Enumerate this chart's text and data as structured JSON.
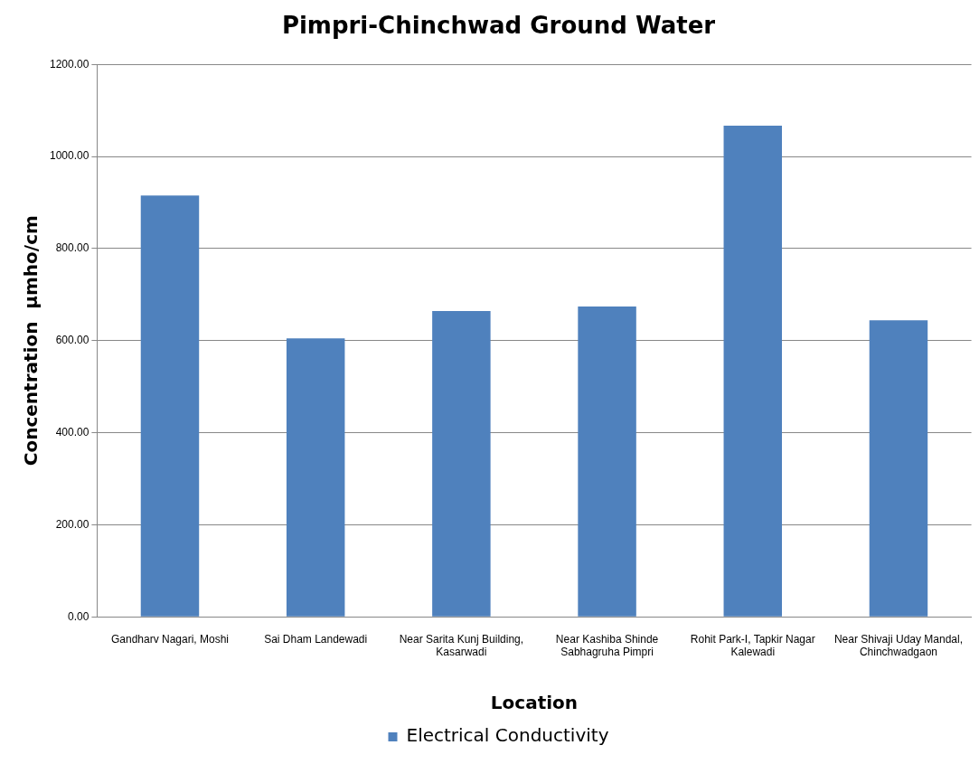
{
  "chart_data": {
    "type": "bar",
    "title": "Pimpri-Chinchwad Ground Water",
    "xlabel": "Location",
    "ylabel": "Concentration  µmho/cm",
    "categories": [
      "Gandharv Nagari, Moshi",
      "Sai Dham Landewadi",
      "Near Sarita Kunj Building, Kasarwadi",
      "Near Kashiba Shinde Sabhagruha Pimpri",
      "Rohit Park-I, Tapkir Nagar Kalewadi",
      "Near Shivaji Uday Mandal, Chinchwadgaon"
    ],
    "series": [
      {
        "name": "Electrical Conductivity",
        "color": "#4f81bd",
        "values": [
          915,
          605,
          664,
          674,
          1067,
          644
        ]
      }
    ],
    "ylim": [
      0,
      1200
    ],
    "yticks": [
      {
        "value": 0,
        "label": "0.00"
      },
      {
        "value": 200,
        "label": "200.00"
      },
      {
        "value": 400,
        "label": "400.00"
      },
      {
        "value": 600,
        "label": "600.00"
      },
      {
        "value": 800,
        "label": "800.00"
      },
      {
        "value": 1000,
        "label": "1000.00"
      },
      {
        "value": 1200,
        "label": "1200.00"
      }
    ],
    "grid": "y",
    "legend": "bottom"
  }
}
